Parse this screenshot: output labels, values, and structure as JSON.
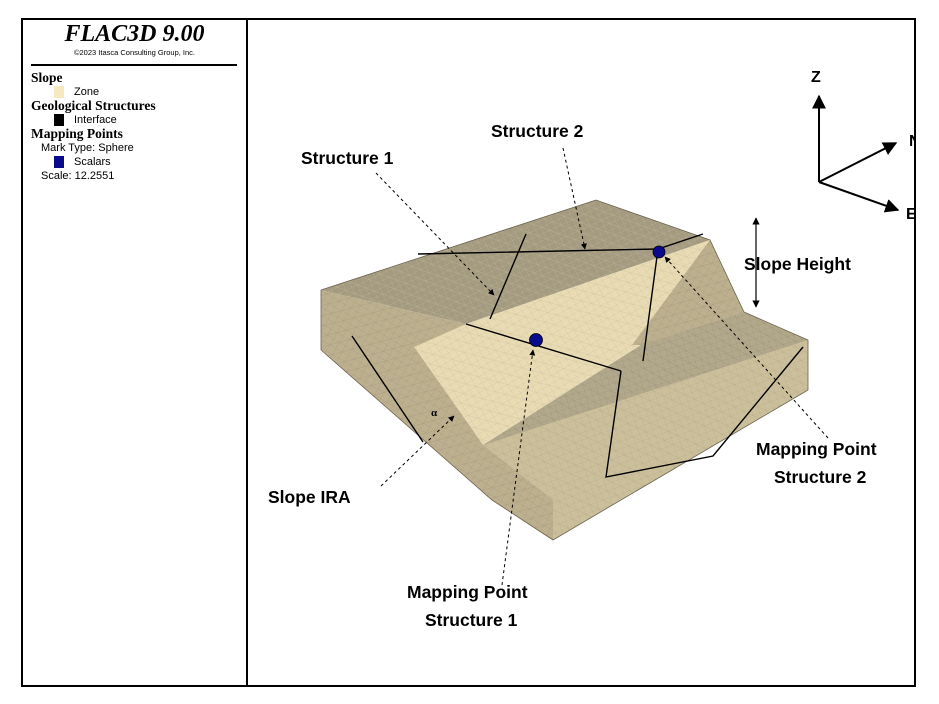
{
  "app": {
    "title": "FLAC3D 9.00",
    "copyright": "©2023 Itasca Consulting Group, Inc."
  },
  "legend": {
    "slope": {
      "heading": "Slope",
      "item_label": "Zone",
      "item_color": "#f7e9bf"
    },
    "structures": {
      "heading": "Geological Structures",
      "item_label": "Interface",
      "item_color": "#000000"
    },
    "mapping": {
      "heading": "Mapping Points",
      "mark_type": "Mark Type: Sphere",
      "item_label": "Scalars",
      "item_color": "#0a0a8c",
      "scale": "Scale: 12.2551"
    }
  },
  "axes": {
    "z": "Z",
    "n": "N",
    "e": "E"
  },
  "callouts": {
    "structure_1": "Structure 1",
    "structure_2": "Structure 2",
    "slope_height": "Slope Height",
    "slope_ira": "Slope IRA",
    "alpha": "α",
    "mp1_line1": "Mapping Point",
    "mp1_line2": "Structure 1",
    "mp2_line1": "Mapping Point",
    "mp2_line2": "Structure 2"
  },
  "colors": {
    "zone_top": "#a39a7f",
    "zone_face": "#e9dcb5",
    "zone_side": "#bcb08f",
    "zone_front": "#ccc09c",
    "interface": "#000000",
    "mapping_point": "#0a0a8c"
  }
}
